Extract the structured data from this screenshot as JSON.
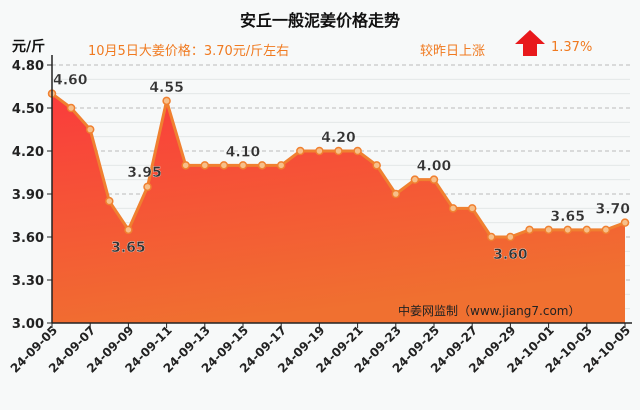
{
  "header": {
    "title": "安丘一般泥姜价格走势",
    "unit": "元/斤",
    "price_text": "10月5日大姜价格：3.70元/斤左右",
    "compare_text": "较昨日上涨",
    "change_pct": "1.37%",
    "trend_icon": "arrow-up-icon",
    "trend_color": "#e8191c"
  },
  "source": "中姜网监制（www.jiang7.com）",
  "chart_data": {
    "type": "area",
    "title": "安丘一般泥姜价格走势",
    "ylabel": "元/斤",
    "ylim": [
      3.0,
      4.8
    ],
    "yticks": [
      "3.00",
      "3.30",
      "3.60",
      "3.90",
      "4.20",
      "4.50",
      "4.80"
    ],
    "grid": true,
    "x": [
      "24-09-05",
      "24-09-06",
      "24-09-07",
      "24-09-08",
      "24-09-09",
      "24-09-10",
      "24-09-11",
      "24-09-12",
      "24-09-13",
      "24-09-14",
      "24-09-15",
      "24-09-16",
      "24-09-17",
      "24-09-18",
      "24-09-19",
      "24-09-20",
      "24-09-21",
      "24-09-22",
      "24-09-23",
      "24-09-24",
      "24-09-25",
      "24-09-26",
      "24-09-27",
      "24-09-28",
      "24-09-29",
      "24-09-30",
      "24-10-01",
      "24-10-02",
      "24-10-03",
      "24-10-04",
      "24-10-05"
    ],
    "values": [
      4.6,
      4.5,
      4.35,
      3.85,
      3.65,
      3.95,
      4.55,
      4.1,
      4.1,
      4.1,
      4.1,
      4.1,
      4.1,
      4.2,
      4.2,
      4.2,
      4.2,
      4.1,
      3.9,
      4.0,
      4.0,
      3.8,
      3.8,
      3.6,
      3.6,
      3.65,
      3.65,
      3.65,
      3.65,
      3.65,
      3.7
    ],
    "xtick_labels": [
      "24-09-05",
      "24-09-07",
      "24-09-09",
      "24-09-11",
      "24-09-13",
      "24-09-15",
      "24-09-17",
      "24-09-19",
      "24-09-21",
      "24-09-23",
      "24-09-25",
      "24-09-27",
      "24-09-29",
      "24-10-01",
      "24-10-03",
      "24-10-05"
    ],
    "data_labels": [
      {
        "x": "24-09-05",
        "label": "4.60",
        "pos": "above"
      },
      {
        "x": "24-09-09",
        "label": "3.65",
        "pos": "below"
      },
      {
        "x": "24-09-10",
        "label": "3.95",
        "pos": "left"
      },
      {
        "x": "24-09-11",
        "label": "4.55",
        "pos": "above"
      },
      {
        "x": "24-09-15",
        "label": "4.10",
        "pos": "above"
      },
      {
        "x": "24-09-20",
        "label": "4.20",
        "pos": "above"
      },
      {
        "x": "24-09-25",
        "label": "4.00",
        "pos": "above"
      },
      {
        "x": "24-09-29",
        "label": "3.60",
        "pos": "below"
      },
      {
        "x": "24-10-02",
        "label": "3.65",
        "pos": "above"
      },
      {
        "x": "24-10-05",
        "label": "3.70",
        "pos": "above"
      }
    ],
    "line_color": "#f08030",
    "fill_top": "#fa3c3c",
    "fill_bottom": "#f07030"
  }
}
